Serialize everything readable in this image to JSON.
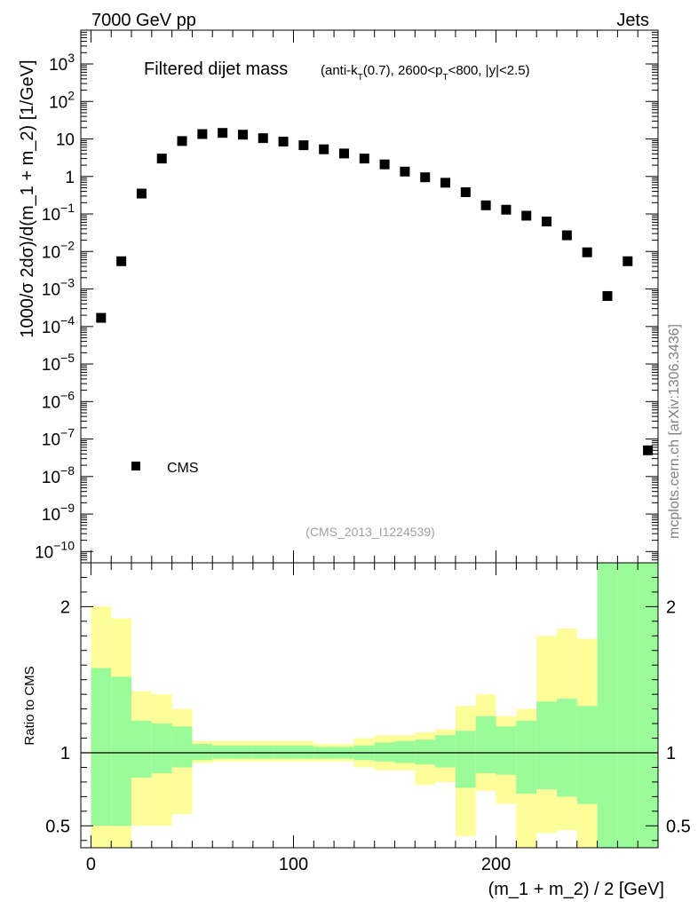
{
  "header": {
    "left": "7000 GeV pp",
    "right": "Jets"
  },
  "side_label": "mcplots.cern.ch [arXiv:1306.3436]",
  "chart_data": {
    "type": "scatter",
    "title_main": "Filtered dijet mass",
    "title_sub": {
      "p1": "(anti-k",
      "p1_sub": "T",
      "p2": "(0.7), 2600<p",
      "p2_sub": "T",
      "p3": "<800, |y|<2.5)"
    },
    "analysis_id": "(CMS_2013_I1224539)",
    "xlabel": "(m_1 + m_2) / 2 [GeV]",
    "ylabel": "1000/σ 2dσ)/d(m_1 + m_2) [1/GeV]",
    "ratio_ylabel": "Ratio to CMS",
    "xlim": [
      -5,
      280
    ],
    "ylim_log10": [
      -10.3,
      3.9
    ],
    "ratio_ylim": [
      0.35,
      2.3
    ],
    "x_ticks": [
      "0",
      "100",
      "200"
    ],
    "x_tick_values": [
      0,
      100,
      200
    ],
    "y_ticks": [
      {
        "exp": 3,
        "base": "10",
        "sup": "3"
      },
      {
        "exp": 2,
        "base": "10",
        "sup": "2"
      },
      {
        "exp": 1,
        "base": "10",
        "sup": ""
      },
      {
        "exp": 0,
        "base": "1",
        "sup": ""
      },
      {
        "exp": -1,
        "base": "10",
        "sup": "−1"
      },
      {
        "exp": -2,
        "base": "10",
        "sup": "−2"
      },
      {
        "exp": -3,
        "base": "10",
        "sup": "−3"
      },
      {
        "exp": -4,
        "base": "10",
        "sup": "−4"
      },
      {
        "exp": -5,
        "base": "10",
        "sup": "−5"
      },
      {
        "exp": -6,
        "base": "10",
        "sup": "−6"
      },
      {
        "exp": -7,
        "base": "10",
        "sup": "−7"
      },
      {
        "exp": -8,
        "base": "10",
        "sup": "−8"
      },
      {
        "exp": -9,
        "base": "10",
        "sup": "−9"
      },
      {
        "exp": -10,
        "base": "10",
        "sup": "−10"
      }
    ],
    "ratio_ticks": [
      {
        "value": 2,
        "label": "2"
      },
      {
        "value": 1,
        "label": "1"
      },
      {
        "value": 0.5,
        "label": "0.5"
      }
    ],
    "legend": {
      "label": "CMS",
      "position": "bottom-left"
    },
    "series": [
      {
        "name": "CMS",
        "x": [
          5,
          15,
          25,
          35,
          45,
          55,
          65,
          75,
          85,
          95,
          105,
          115,
          125,
          135,
          145,
          155,
          165,
          175,
          185,
          195,
          205,
          215,
          225,
          235,
          245,
          255,
          265,
          275
        ],
        "y": [
          0.00017,
          0.0055,
          0.35,
          3.0,
          8.8,
          13.5,
          14.5,
          13.0,
          10.5,
          8.5,
          6.8,
          5.3,
          4.1,
          3.0,
          2.1,
          1.35,
          0.95,
          0.68,
          0.38,
          0.17,
          0.13,
          0.09,
          0.063,
          0.027,
          0.0095,
          0.00065,
          0.0055,
          5e-08
        ]
      }
    ],
    "ratio_bands": {
      "edges": [
        0,
        10,
        20,
        30,
        40,
        50,
        60,
        70,
        80,
        90,
        100,
        110,
        120,
        130,
        140,
        150,
        160,
        170,
        180,
        190,
        200,
        210,
        220,
        230,
        240,
        250,
        260,
        270,
        280
      ],
      "green_low": [
        0.5,
        0.5,
        0.83,
        0.86,
        0.9,
        0.95,
        0.96,
        0.96,
        0.96,
        0.96,
        0.96,
        0.96,
        0.96,
        0.95,
        0.94,
        0.93,
        0.92,
        0.9,
        0.76,
        0.86,
        0.85,
        0.72,
        0.75,
        0.7,
        0.65,
        0.35,
        0.35,
        0.35
      ],
      "green_high": [
        1.58,
        1.52,
        1.22,
        1.2,
        1.18,
        1.06,
        1.05,
        1.05,
        1.05,
        1.05,
        1.05,
        1.04,
        1.04,
        1.05,
        1.07,
        1.08,
        1.09,
        1.12,
        1.15,
        1.25,
        1.18,
        1.22,
        1.35,
        1.37,
        1.32,
        2.5,
        2.5,
        2.5
      ],
      "yellow_low": [
        0.35,
        0.35,
        0.5,
        0.5,
        0.58,
        0.93,
        0.94,
        0.94,
        0.94,
        0.94,
        0.94,
        0.94,
        0.94,
        0.9,
        0.88,
        0.88,
        0.78,
        0.8,
        0.43,
        0.74,
        0.65,
        0.35,
        0.45,
        0.47,
        0.35,
        0.35,
        0.35,
        0.35
      ],
      "yellow_high": [
        2.0,
        1.92,
        1.42,
        1.4,
        1.3,
        1.08,
        1.08,
        1.08,
        1.08,
        1.08,
        1.08,
        1.06,
        1.06,
        1.1,
        1.12,
        1.12,
        1.14,
        1.16,
        1.32,
        1.4,
        1.25,
        1.3,
        1.8,
        1.85,
        1.78,
        2.5,
        2.5,
        2.5
      ]
    }
  }
}
